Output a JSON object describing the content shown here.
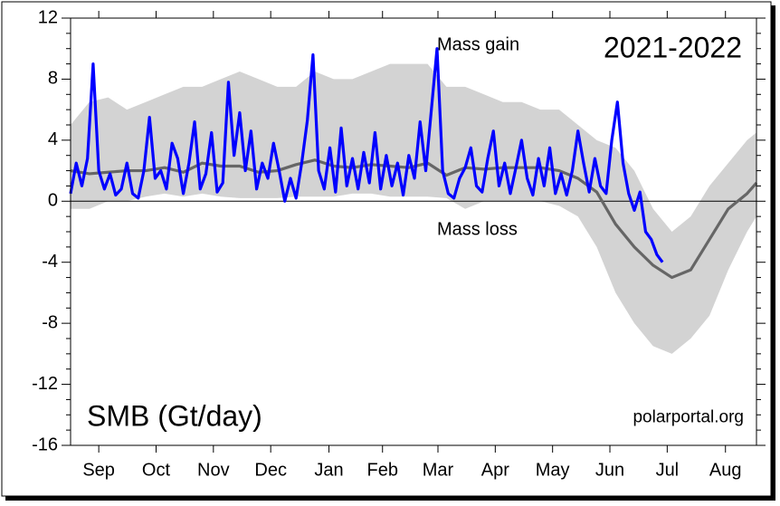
{
  "chart_data": {
    "type": "line",
    "title": "2021-2022",
    "ylabel": "SMB (Gt/day)",
    "annotations": [
      {
        "text": "Mass gain",
        "x": 195,
        "y": 10.2
      },
      {
        "text": "Mass loss",
        "x": 195,
        "y": -1.9
      },
      {
        "text": "polarportal.org",
        "x": 320,
        "y": -14.2
      }
    ],
    "xlim": [
      0,
      365
    ],
    "xticks": [
      {
        "value": 15,
        "label": "Sep"
      },
      {
        "value": 45.5,
        "label": "Oct"
      },
      {
        "value": 76,
        "label": "Nov"
      },
      {
        "value": 106.5,
        "label": "Dec"
      },
      {
        "value": 137.5,
        "label": "Jan"
      },
      {
        "value": 166,
        "label": "Feb"
      },
      {
        "value": 195.5,
        "label": "Mar"
      },
      {
        "value": 226,
        "label": "Apr"
      },
      {
        "value": 256.5,
        "label": "May"
      },
      {
        "value": 287,
        "label": "Jun"
      },
      {
        "value": 317.5,
        "label": "Jul"
      },
      {
        "value": 348.5,
        "label": "Aug"
      }
    ],
    "ylim": [
      -16,
      12
    ],
    "yticks": [
      -16,
      -12,
      -8,
      -4,
      0,
      4,
      8,
      12
    ],
    "band": {
      "color": "#d3d3d3",
      "x": [
        0,
        10,
        20,
        30,
        40,
        50,
        60,
        70,
        80,
        90,
        100,
        110,
        120,
        130,
        140,
        150,
        160,
        170,
        180,
        190,
        200,
        210,
        220,
        230,
        240,
        250,
        260,
        270,
        280,
        290,
        300,
        310,
        320,
        330,
        340,
        350,
        360,
        365
      ],
      "upper": [
        5,
        6.5,
        6.8,
        6,
        6.5,
        7,
        7.5,
        7.5,
        8,
        8.5,
        8,
        7.5,
        7.5,
        8.5,
        8,
        8,
        8.5,
        9,
        9,
        9,
        7.5,
        7.5,
        7,
        6.5,
        6.5,
        6,
        6,
        5,
        4,
        3.5,
        2,
        -0.5,
        -2,
        -1,
        1,
        2.5,
        4,
        4.5
      ],
      "lower": [
        -0.5,
        -0.5,
        0,
        0,
        0.3,
        0.5,
        0.3,
        0.5,
        0.3,
        0.2,
        0.2,
        0.2,
        0.3,
        0.3,
        0.3,
        0.5,
        0.5,
        0.3,
        0.3,
        0.3,
        0.2,
        -0.5,
        0,
        0,
        0,
        0,
        -0.3,
        -1,
        -3,
        -6,
        -8,
        -9.5,
        -10,
        -9,
        -7.5,
        -4.5,
        -2,
        -1
      ]
    },
    "series": [
      {
        "color": "#666666",
        "x": [
          0,
          10,
          20,
          30,
          40,
          50,
          60,
          70,
          80,
          90,
          100,
          110,
          120,
          130,
          140,
          150,
          160,
          170,
          180,
          190,
          200,
          210,
          220,
          230,
          240,
          250,
          260,
          270,
          280,
          290,
          300,
          310,
          320,
          330,
          340,
          350,
          360,
          365
        ],
        "values": [
          2.0,
          1.8,
          1.9,
          2.0,
          2.0,
          2.2,
          1.9,
          2.5,
          2.3,
          2.3,
          1.9,
          2.0,
          2.4,
          2.7,
          2.3,
          2.2,
          2.4,
          2.3,
          2.2,
          2.5,
          1.7,
          2.2,
          2.1,
          2.2,
          2.2,
          2.2,
          2.0,
          1.5,
          0.6,
          -1.5,
          -3.0,
          -4.2,
          -5.0,
          -4.5,
          -2.5,
          -0.5,
          0.5,
          1.2
        ]
      },
      {
        "color": "#0000ff",
        "x": [
          0,
          3,
          6,
          9,
          12,
          15,
          18,
          21,
          24,
          27,
          30,
          33,
          36,
          39,
          42,
          45,
          48,
          51,
          54,
          57,
          60,
          63,
          66,
          69,
          72,
          75,
          78,
          81,
          84,
          87,
          90,
          93,
          96,
          99,
          102,
          105,
          108,
          111,
          114,
          117,
          120,
          123,
          126,
          129,
          132,
          135,
          138,
          141,
          144,
          147,
          150,
          153,
          156,
          159,
          162,
          165,
          168,
          171,
          174,
          177,
          180,
          183,
          186,
          189,
          192,
          195,
          198,
          201,
          204,
          207,
          210,
          213,
          216,
          219,
          222,
          225,
          228,
          231,
          234,
          237,
          240,
          243,
          246,
          249,
          252,
          255,
          258,
          261,
          264,
          267,
          270,
          273,
          276,
          279,
          282,
          285,
          288,
          291,
          294,
          297,
          300,
          303,
          306,
          309,
          312,
          315
        ],
        "values": [
          0.5,
          2.5,
          1.0,
          2.8,
          9.0,
          2.0,
          0.8,
          1.8,
          0.4,
          0.8,
          2.5,
          0.5,
          0.2,
          2.0,
          5.5,
          1.5,
          2.0,
          0.8,
          3.8,
          2.8,
          0.5,
          2.5,
          5.2,
          0.8,
          1.8,
          4.5,
          0.6,
          1.2,
          7.8,
          3.0,
          5.8,
          2.0,
          4.6,
          0.8,
          2.5,
          1.5,
          3.8,
          2.0,
          0.0,
          1.5,
          0.2,
          2.5,
          5.3,
          9.6,
          2.0,
          0.8,
          3.5,
          0.6,
          4.8,
          1.0,
          2.8,
          0.8,
          3.2,
          1.2,
          4.5,
          0.8,
          3.0,
          1.0,
          2.5,
          0.4,
          3.0,
          1.5,
          5.2,
          2.0,
          6.0,
          10.0,
          2.0,
          0.5,
          0.2,
          1.5,
          2.2,
          3.5,
          1.0,
          0.6,
          2.8,
          4.6,
          1.0,
          2.5,
          0.5,
          2.2,
          4.0,
          1.5,
          0.4,
          2.8,
          1.0,
          3.5,
          0.5,
          1.8,
          0.4,
          2.0,
          4.6,
          2.5,
          0.6,
          2.8,
          1.0,
          0.5,
          4.0,
          6.5,
          2.5,
          0.5,
          -0.6,
          0.6,
          -2.0,
          -2.5,
          -3.5,
          -4.0
        ]
      }
    ]
  }
}
